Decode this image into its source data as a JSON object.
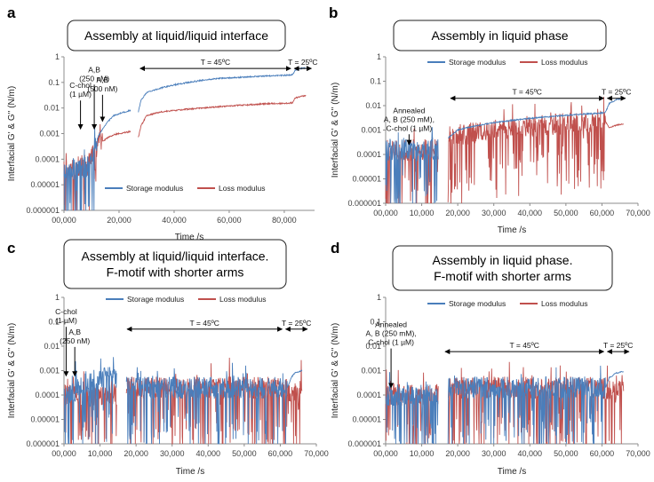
{
  "chart_data": [
    {
      "type": "line",
      "panel_label": "a",
      "title_lines": [
        "Assembly at liquid/liquid interface"
      ],
      "ylabel": "Interfacial G' & G'' (N/m)",
      "xlabel": "Time /s",
      "x_ticks": [
        "00,000",
        "20,000",
        "40,000",
        "60,000",
        "80,000"
      ],
      "y_ticks": [
        "1",
        "0.1",
        "0.01",
        "0.001",
        "0.0001",
        "0.00001",
        "0.000001"
      ],
      "xlim": [
        0,
        91000
      ],
      "ylim": [
        1e-06,
        1
      ],
      "legend": [
        "Storage modulus",
        "Loss modulus"
      ],
      "legend_position": "bottom-center",
      "series": [
        {
          "name": "Storage modulus",
          "color": "#4a7ebb",
          "x": [
            0,
            3000,
            6000,
            9000,
            11000,
            12500,
            14000,
            16000,
            18000,
            20000,
            22000,
            24000,
            27000,
            28000,
            30000,
            35000,
            40000,
            45000,
            50000,
            55000,
            60000,
            65000,
            70000,
            75000,
            80000,
            83000,
            84000,
            86000,
            88000
          ],
          "y": [
            3e-05,
            4e-05,
            4e-05,
            5e-05,
            0.0003,
            0.0008,
            0.0015,
            0.003,
            0.005,
            0.006,
            0.007,
            0.008,
            0.007,
            0.02,
            0.04,
            0.06,
            0.08,
            0.1,
            0.12,
            0.14,
            0.15,
            0.16,
            0.17,
            0.18,
            0.19,
            0.2,
            0.3,
            0.35,
            0.37
          ],
          "noise_until": 12000
        },
        {
          "name": "Loss modulus",
          "color": "#c0504d",
          "x": [
            0,
            3000,
            6000,
            9000,
            11000,
            12500,
            14000,
            16000,
            18000,
            20000,
            22000,
            24000,
            27000,
            28000,
            30000,
            35000,
            40000,
            45000,
            50000,
            55000,
            60000,
            65000,
            70000,
            75000,
            80000,
            83000,
            84000,
            86000,
            88000
          ],
          "y": [
            3e-05,
            4e-05,
            5e-05,
            6e-05,
            0.0002,
            0.0004,
            0.0005,
            0.0007,
            0.0009,
            0.001,
            0.0011,
            0.0012,
            0.0007,
            0.002,
            0.005,
            0.007,
            0.008,
            0.009,
            0.01,
            0.011,
            0.012,
            0.013,
            0.014,
            0.015,
            0.015,
            0.016,
            0.025,
            0.028,
            0.03
          ],
          "noise_until": 14000
        }
      ],
      "spans": [
        {
          "label": "T = 45ºC",
          "x_start": 27000,
          "x_end": 83000,
          "y": 0.35
        },
        {
          "label": "T = 25ºC",
          "x_start": 83000,
          "x_end": 90500,
          "y": 0.35
        }
      ],
      "annotations": [
        {
          "lines": [
            "C-chol",
            "(1 µM)"
          ],
          "x": 6000,
          "y_text": 0.06,
          "y_arrow_end": 0.0015
        },
        {
          "lines": [
            "A,B",
            "(250 nM)"
          ],
          "x": 11000,
          "y_text": 0.25,
          "y_arrow_end": 0.0015
        },
        {
          "lines": [
            "A,B",
            "(500 nM)"
          ],
          "x": 14000,
          "y_text": 0.1,
          "y_arrow_end": 0.003
        }
      ]
    },
    {
      "type": "line",
      "panel_label": "b",
      "title_lines": [
        "Assembly in liquid phase"
      ],
      "ylabel": "Interfacial G' & G'' (N/m)",
      "xlabel": "Time /s",
      "x_ticks": [
        "00,000",
        "10,000",
        "20,000",
        "30,000",
        "40,000",
        "50,000",
        "60,000",
        "70,000"
      ],
      "y_ticks": [
        "1",
        "0.1",
        "0.01",
        "0.001",
        "0.0001",
        "0.00001",
        "0.000001"
      ],
      "xlim": [
        0,
        70000
      ],
      "ylim": [
        1e-06,
        1
      ],
      "legend": [
        "Storage modulus",
        "Loss modulus"
      ],
      "legend_position": "top-center",
      "series": [
        {
          "name": "Storage modulus",
          "color": "#4a7ebb",
          "x": [
            0,
            5000,
            10000,
            14500,
            17500,
            20000,
            25000,
            30000,
            35000,
            40000,
            45000,
            50000,
            55000,
            60000,
            61000,
            62000,
            64000,
            66000
          ],
          "y": [
            0.00015,
            0.00015,
            0.00015,
            0.00015,
            0.0005,
            0.001,
            0.0015,
            0.002,
            0.0025,
            0.003,
            0.0035,
            0.004,
            0.0045,
            0.005,
            0.0055,
            0.012,
            0.018,
            0.02
          ],
          "noise_until": 15000
        },
        {
          "name": "Loss modulus",
          "color": "#c0504d",
          "x": [
            0,
            5000,
            10000,
            14500,
            17500,
            20000,
            25000,
            30000,
            35000,
            40000,
            45000,
            50000,
            55000,
            60000,
            61000,
            62000,
            64000,
            66000
          ],
          "y": [
            0.00015,
            0.00015,
            0.00015,
            0.00015,
            0.0003,
            0.0006,
            0.0008,
            0.001,
            0.0012,
            0.0014,
            0.0016,
            0.0018,
            0.002,
            0.0022,
            0.0022,
            0.0012,
            0.0016,
            0.0018
          ],
          "noise_until": 61000
        }
      ],
      "spans": [
        {
          "label": "T = 45ºC",
          "x_start": 17500,
          "x_end": 61000,
          "y": 0.02
        },
        {
          "label": "T = 25ºC",
          "x_start": 61000,
          "x_end": 67000,
          "y": 0.02
        }
      ],
      "annotations": [
        {
          "lines": [
            "Annealed",
            "A, B (250 mM),",
            "C-chol (1 µM)"
          ],
          "x": 6500,
          "y_text": 0.005,
          "y_arrow_end": 0.00025
        }
      ]
    },
    {
      "type": "line",
      "panel_label": "c",
      "title_lines": [
        "Assembly at liquid/liquid interface.",
        "F-motif with shorter arms"
      ],
      "ylabel": "Interfacial G' & G'' (N/m)",
      "xlabel": "Time /s",
      "x_ticks": [
        "00,000",
        "10,000",
        "20,000",
        "30,000",
        "40,000",
        "50,000",
        "60,000",
        "70,000"
      ],
      "y_ticks": [
        "1",
        "0.1",
        "0.01",
        "0.001",
        "0.0001",
        "0.00001",
        "0.000001"
      ],
      "xlim": [
        0,
        70000
      ],
      "ylim": [
        1e-06,
        1
      ],
      "legend": [
        "Storage modulus",
        "Loss modulus"
      ],
      "legend_position": "top-center",
      "series": [
        {
          "name": "Storage modulus",
          "color": "#4a7ebb",
          "x": [
            0,
            2000,
            4000,
            6000,
            8000,
            10000,
            12000,
            14500,
            17500,
            20000,
            30000,
            40000,
            50000,
            60000,
            62000,
            63000,
            64000,
            65000,
            66000
          ],
          "y": [
            0.0001,
            0.0001,
            0.0002,
            0.0003,
            0.0004,
            0.00045,
            0.0005,
            0.0005,
            0.0002,
            0.0002,
            0.0002,
            0.0002,
            0.0002,
            0.0002,
            0.0002,
            0.0005,
            0.0008,
            0.0009,
            0.001
          ],
          "noise_until": 62000
        },
        {
          "name": "Loss modulus",
          "color": "#c0504d",
          "x": [
            0,
            2000,
            4000,
            6000,
            8000,
            10000,
            12000,
            14500,
            17500,
            20000,
            30000,
            40000,
            50000,
            60000,
            62000,
            63000,
            64000,
            65000,
            66000
          ],
          "y": [
            0.0001,
            0.0001,
            0.0001,
            0.0001,
            0.0001,
            0.0001,
            0.0001,
            0.0001,
            0.0002,
            0.0002,
            0.0002,
            0.0002,
            0.0002,
            0.0002,
            0.00015,
            0.00015,
            0.00015,
            0.00015,
            0.00015
          ],
          "noise_until": 66000
        }
      ],
      "spans": [
        {
          "label": "T = 45ºC",
          "x_start": 17000,
          "x_end": 61000,
          "y": 0.05
        },
        {
          "label": "T = 25ºC",
          "x_start": 61000,
          "x_end": 68000,
          "y": 0.05
        }
      ],
      "annotations": [
        {
          "lines": [
            "C-chol",
            "(1 µM)"
          ],
          "x": 600,
          "y_text": 0.2,
          "y_arrow_end": 0.0006
        },
        {
          "lines": [
            "A,B",
            "(250 nM)"
          ],
          "x": 3000,
          "y_text": 0.03,
          "y_arrow_end": 0.0006
        }
      ]
    },
    {
      "type": "line",
      "panel_label": "d",
      "title_lines": [
        "Assembly in liquid phase.",
        "F-motif with shorter arms"
      ],
      "ylabel": "Interfacial G' & G'' (N/m)",
      "xlabel": "Time /s",
      "x_ticks": [
        "00,000",
        "10,000",
        "20,000",
        "30,000",
        "40,000",
        "50,000",
        "60,000",
        "70,000"
      ],
      "y_ticks": [
        "1",
        "0.1",
        "0.01",
        "0.001",
        "0.0001",
        "0.00001",
        "0.000001"
      ],
      "xlim": [
        0,
        70000
      ],
      "ylim": [
        1e-06,
        1
      ],
      "legend": [
        "Storage modulus",
        "Loss modulus"
      ],
      "legend_position": "top-center",
      "series": [
        {
          "name": "Storage modulus",
          "color": "#4a7ebb",
          "x": [
            0,
            5000,
            10000,
            14500,
            17500,
            20000,
            30000,
            40000,
            50000,
            60000,
            61000,
            62000,
            64000,
            66000
          ],
          "y": [
            0.0001,
            0.0001,
            0.0001,
            0.0001,
            0.0002,
            0.0002,
            0.0002,
            0.0002,
            0.0002,
            0.0002,
            0.0002,
            0.0005,
            0.0008,
            0.0009
          ],
          "noise_until": 61000
        },
        {
          "name": "Loss modulus",
          "color": "#c0504d",
          "x": [
            0,
            5000,
            10000,
            14500,
            17500,
            20000,
            30000,
            40000,
            50000,
            60000,
            61000,
            62000,
            64000,
            66000
          ],
          "y": [
            0.0001,
            0.0001,
            0.0001,
            0.0001,
            0.0002,
            0.0002,
            0.0002,
            0.0002,
            0.0002,
            0.0002,
            0.00015,
            0.00015,
            0.00015,
            0.00015
          ],
          "noise_until": 66000
        }
      ],
      "spans": [
        {
          "label": "T = 45ºC",
          "x_start": 16000,
          "x_end": 61000,
          "y": 0.006
        },
        {
          "label": "T = 25ºC",
          "x_start": 61000,
          "x_end": 68000,
          "y": 0.006
        }
      ],
      "annotations": [
        {
          "lines": [
            "Annealed",
            "A, B (250 mM),",
            "C-chol (1 µM)"
          ],
          "x": 1500,
          "y_text": 0.06,
          "y_arrow_end": 0.0002
        }
      ]
    }
  ]
}
